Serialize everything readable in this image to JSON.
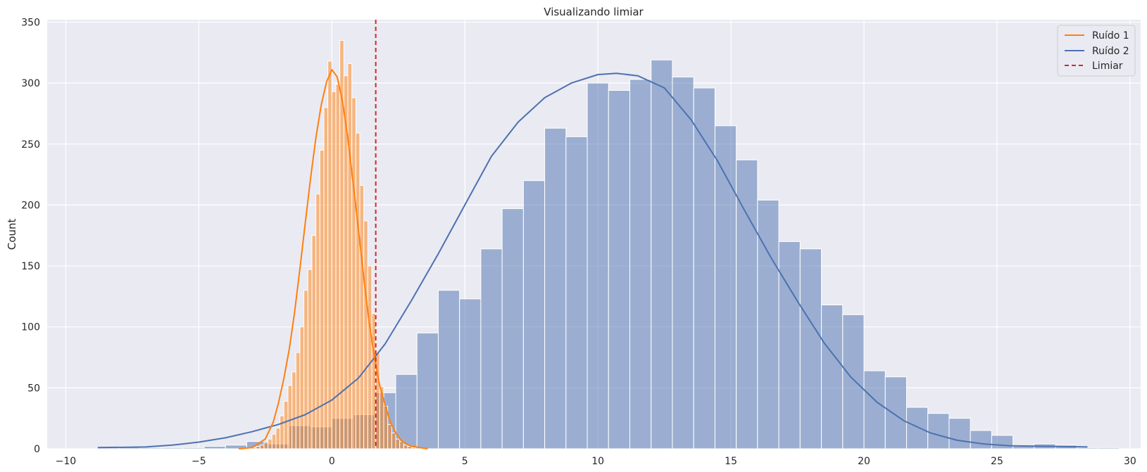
{
  "chart_data": {
    "type": "histogram",
    "title": "Visualizando limiar",
    "xlabel": "",
    "ylabel": "Count",
    "xlim": [
      -10.7,
      30.4
    ],
    "ylim": [
      0,
      352
    ],
    "xticks": [
      -10,
      -5,
      0,
      5,
      10,
      15,
      20,
      25,
      30
    ],
    "yticks": [
      0,
      50,
      100,
      150,
      200,
      250,
      300,
      350
    ],
    "xtick_labels": [
      "−10",
      "−5",
      "0",
      "5",
      "10",
      "15",
      "20",
      "25",
      "30"
    ],
    "ytick_labels": [
      "0",
      "50",
      "100",
      "150",
      "200",
      "250",
      "300",
      "350"
    ],
    "grid": true,
    "legend_position": "top-right",
    "colors": {
      "background": "#EAEAF2",
      "grid": "#FFFFFF",
      "ruido1": "#FF7F0E",
      "ruido2": "#4C72B0",
      "limiar": "#D62728"
    },
    "threshold": {
      "name": "Limiar",
      "x": 1.65
    },
    "series": [
      {
        "name": "Ruído 2",
        "kind": "histogram+kde",
        "bin_start": -8.8,
        "bin_width": 0.8,
        "counts": [
          1,
          2,
          1,
          1,
          1,
          2,
          3,
          6,
          4,
          19,
          18,
          25,
          28,
          46,
          61,
          95,
          130,
          123,
          164,
          197,
          220,
          263,
          256,
          300,
          294,
          303,
          319,
          305,
          296,
          265,
          237,
          204,
          170,
          164,
          118,
          110,
          64,
          59,
          34,
          29,
          25,
          15,
          11,
          2,
          4,
          3,
          1,
          1
        ],
        "kde": [
          [
            -8.8,
            1
          ],
          [
            -7,
            1.5
          ],
          [
            -6,
            3
          ],
          [
            -5,
            5.5
          ],
          [
            -4,
            9
          ],
          [
            -3,
            14
          ],
          [
            -2,
            20
          ],
          [
            -1,
            28
          ],
          [
            0,
            40
          ],
          [
            1,
            58
          ],
          [
            2,
            86
          ],
          [
            3,
            122
          ],
          [
            4,
            160
          ],
          [
            5,
            200
          ],
          [
            6,
            240
          ],
          [
            7,
            268
          ],
          [
            8,
            288
          ],
          [
            9,
            300
          ],
          [
            10,
            307
          ],
          [
            10.7,
            308
          ],
          [
            11.5,
            306
          ],
          [
            12.5,
            296
          ],
          [
            13.5,
            270
          ],
          [
            14.5,
            236
          ],
          [
            15.5,
            196
          ],
          [
            16.5,
            157
          ],
          [
            17.5,
            121
          ],
          [
            18.5,
            87
          ],
          [
            19.5,
            59
          ],
          [
            20.5,
            38
          ],
          [
            21.5,
            23
          ],
          [
            22.5,
            13
          ],
          [
            23.5,
            7
          ],
          [
            24.5,
            4
          ],
          [
            25.5,
            2.5
          ],
          [
            27,
            2
          ],
          [
            28.4,
            1.5
          ]
        ]
      },
      {
        "name": "Ruído 1",
        "kind": "histogram+kde",
        "bin_start": -3.0,
        "bin_width": 0.15,
        "counts": [
          1,
          2,
          3,
          5,
          8,
          12,
          17,
          27,
          39,
          52,
          63,
          79,
          100,
          130,
          147,
          175,
          209,
          245,
          280,
          318,
          293,
          299,
          335,
          306,
          316,
          288,
          259,
          216,
          187,
          150,
          111,
          79,
          51,
          35,
          20,
          13,
          8,
          6,
          3,
          2,
          1,
          1
        ],
        "kde": [
          [
            -3.5,
            0
          ],
          [
            -3,
            1
          ],
          [
            -2.5,
            8
          ],
          [
            -2.2,
            22
          ],
          [
            -2,
            38
          ],
          [
            -1.8,
            58
          ],
          [
            -1.6,
            82
          ],
          [
            -1.4,
            112
          ],
          [
            -1.2,
            148
          ],
          [
            -1,
            185
          ],
          [
            -0.8,
            222
          ],
          [
            -0.6,
            255
          ],
          [
            -0.4,
            282
          ],
          [
            -0.2,
            301
          ],
          [
            0,
            311
          ],
          [
            0.2,
            305
          ],
          [
            0.4,
            285
          ],
          [
            0.6,
            255
          ],
          [
            0.8,
            218
          ],
          [
            1,
            180
          ],
          [
            1.2,
            140
          ],
          [
            1.4,
            104
          ],
          [
            1.6,
            75
          ],
          [
            1.8,
            52
          ],
          [
            2,
            36
          ],
          [
            2.2,
            22
          ],
          [
            2.4,
            13
          ],
          [
            2.6,
            7
          ],
          [
            2.8,
            4
          ],
          [
            3,
            2
          ],
          [
            3.3,
            1
          ],
          [
            3.6,
            0
          ]
        ]
      }
    ]
  }
}
